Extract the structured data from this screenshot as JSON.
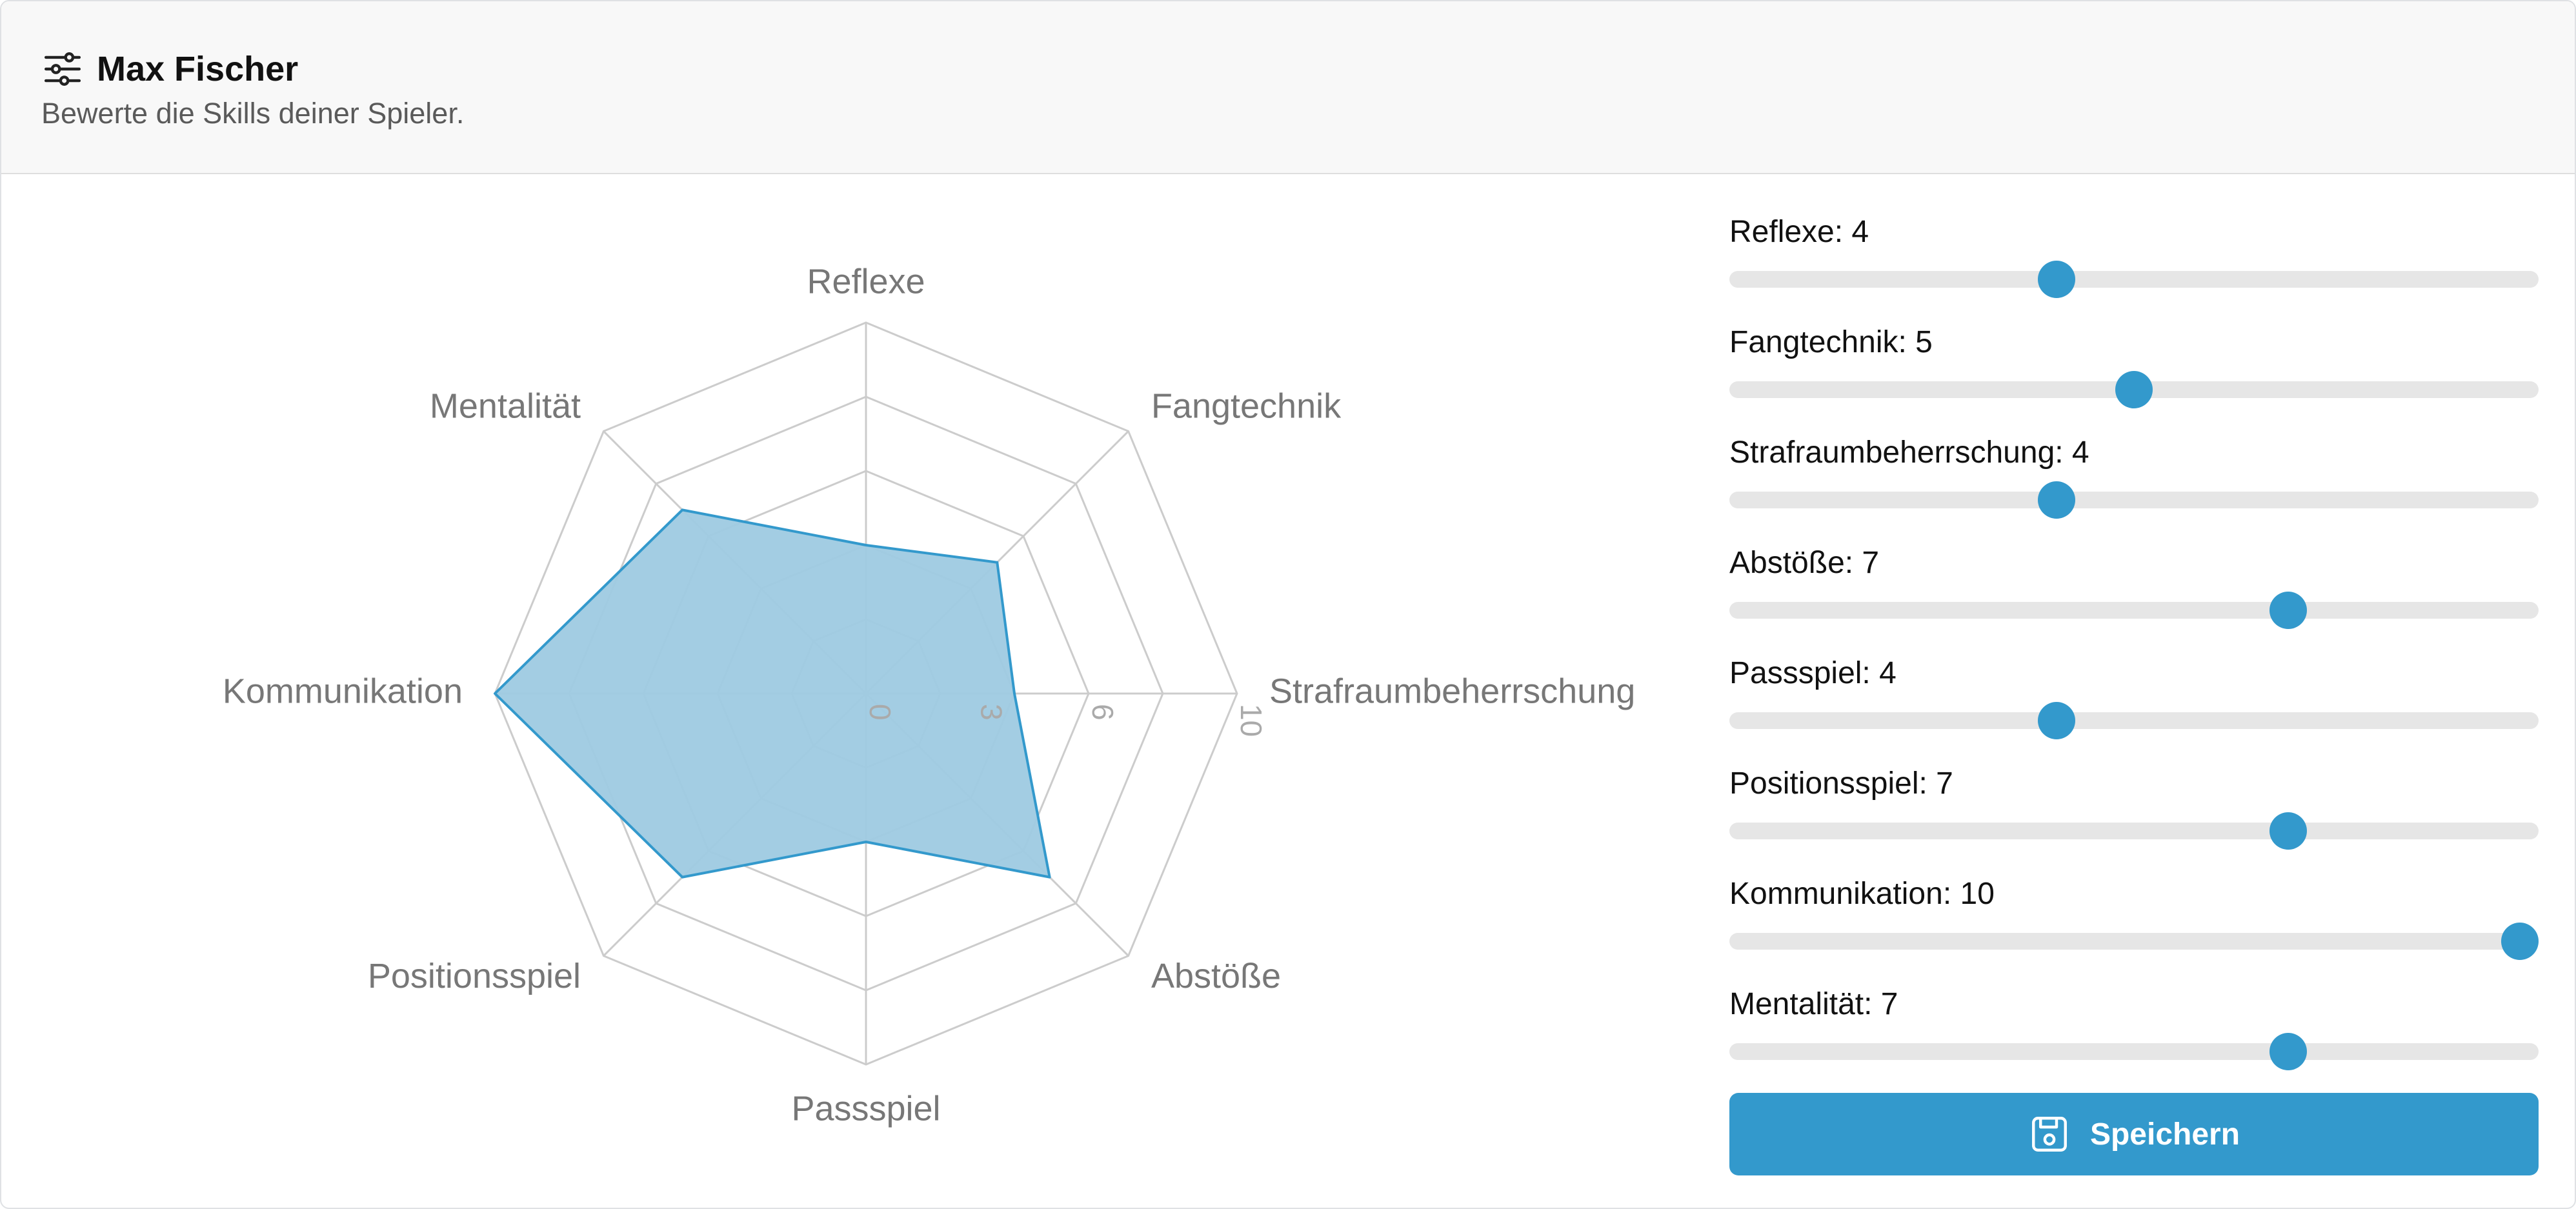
{
  "header": {
    "title": "Max Fischer",
    "subtitle": "Bewerte die Skills deiner Spieler.",
    "icon": "sliders-icon"
  },
  "colors": {
    "accent": "#3399cc",
    "fill": "#9ecae1",
    "grid": "#cccccc"
  },
  "chart_data": {
    "type": "radar",
    "categories": [
      "Reflexe",
      "Fangtechnik",
      "Strafraumbeherrschung",
      "Abstöße",
      "Passspiel",
      "Positionsspiel",
      "Kommunikation",
      "Mentalität"
    ],
    "values": [
      4,
      5,
      4,
      7,
      4,
      7,
      10,
      7
    ],
    "ticks": [
      "0",
      "3",
      "6",
      "10"
    ],
    "tick_values": [
      0,
      3,
      6,
      10
    ],
    "ylim": [
      0,
      10
    ],
    "grid": true
  },
  "sliders": [
    {
      "label": "Reflexe: 4",
      "value": 4
    },
    {
      "label": "Fangtechnik: 5",
      "value": 5
    },
    {
      "label": "Strafraumbeherrschung: 4",
      "value": 4
    },
    {
      "label": "Abstöße: 7",
      "value": 7
    },
    {
      "label": "Passspiel: 4",
      "value": 4
    },
    {
      "label": "Positionsspiel: 7",
      "value": 7
    },
    {
      "label": "Kommunikation: 10",
      "value": 10
    },
    {
      "label": "Mentalität: 7",
      "value": 7
    }
  ],
  "slider_range": [
    0,
    10
  ],
  "save_button": {
    "label": "Speichern",
    "icon": "floppy-disk-icon"
  }
}
